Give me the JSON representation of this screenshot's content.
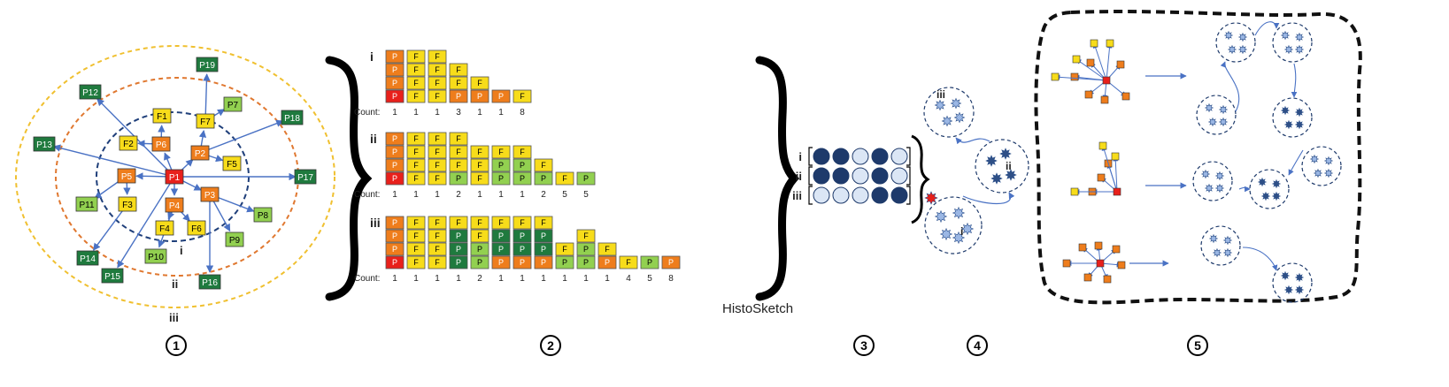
{
  "panel1": {
    "root": "P1",
    "nodes": {
      "P1": "P1",
      "P2": "P2",
      "P3": "P3",
      "P4": "P4",
      "P5": "P5",
      "P6": "P6",
      "F1": "F1",
      "F2": "F2",
      "F3": "F3",
      "F4": "F4",
      "F5": "F5",
      "F6": "F6",
      "F7": "F7",
      "P7": "P7",
      "P8": "P8",
      "P9": "P9",
      "P10": "P10",
      "P11": "P11",
      "P12": "P12",
      "P13": "P13",
      "P14": "P14",
      "P15": "P15",
      "P16": "P16",
      "P17": "P17",
      "P18": "P18",
      "P19": "P19"
    },
    "ring_labels": [
      "i",
      "ii",
      "iii"
    ]
  },
  "panel2": {
    "count_label": "Count:",
    "rows": [
      {
        "label": "i",
        "columns": [
          [
            "P",
            "P",
            "P",
            "P"
          ],
          [
            "F",
            "F",
            "F",
            "F"
          ],
          [
            "F",
            "F",
            "F",
            "F"
          ],
          [
            "P",
            "F",
            "F"
          ],
          [
            "P",
            "F"
          ],
          [
            "P"
          ],
          [
            "F"
          ]
        ],
        "counts": [
          "1",
          "1",
          "1",
          "3",
          "1",
          "1",
          "8"
        ]
      },
      {
        "label": "ii",
        "columns": [
          [
            "P",
            "P",
            "P",
            "P"
          ],
          [
            "F",
            "F",
            "F",
            "F"
          ],
          [
            "F",
            "F",
            "F",
            "F"
          ],
          [
            "P",
            "F",
            "F",
            "F"
          ],
          [
            "F",
            "F",
            "F"
          ],
          [
            "P",
            "P",
            "F"
          ],
          [
            "P",
            "P",
            "F"
          ],
          [
            "P",
            "F"
          ],
          [
            "F"
          ],
          [
            "P"
          ]
        ],
        "counts": [
          "1",
          "1",
          "1",
          "2",
          "1",
          "1",
          "1",
          "2",
          "5",
          "5"
        ]
      },
      {
        "label": "iii",
        "columns": [
          [
            "P",
            "P",
            "P",
            "P"
          ],
          [
            "F",
            "F",
            "F",
            "F"
          ],
          [
            "F",
            "F",
            "F",
            "F"
          ],
          [
            "P",
            "P",
            "P",
            "F"
          ],
          [
            "P",
            "P",
            "F",
            "F"
          ],
          [
            "P",
            "P",
            "P",
            "F"
          ],
          [
            "P",
            "P",
            "P",
            "F"
          ],
          [
            "P",
            "P",
            "P",
            "F"
          ],
          [
            "P",
            "F"
          ],
          [
            "P",
            "P",
            "F"
          ],
          [
            "P",
            "F"
          ],
          [
            "F"
          ],
          [
            "P"
          ],
          [
            "P"
          ]
        ],
        "counts": [
          "1",
          "1",
          "1",
          "1",
          "2",
          "1",
          "1",
          "1",
          "1",
          "1",
          "1",
          "4",
          "5",
          "8"
        ]
      }
    ],
    "caption": "HistoSketch"
  },
  "panel3": {
    "rows": [
      {
        "label": "i",
        "cells": [
          1,
          1,
          0,
          1,
          0
        ]
      },
      {
        "label": "ii",
        "cells": [
          1,
          1,
          0,
          1,
          0
        ]
      },
      {
        "label": "iii",
        "cells": [
          0,
          0,
          0,
          1,
          1
        ]
      }
    ]
  },
  "panel4": {
    "clusters": [
      "i",
      "ii",
      "iii"
    ]
  },
  "step_numbers": [
    "1",
    "2",
    "3",
    "4",
    "5"
  ]
}
